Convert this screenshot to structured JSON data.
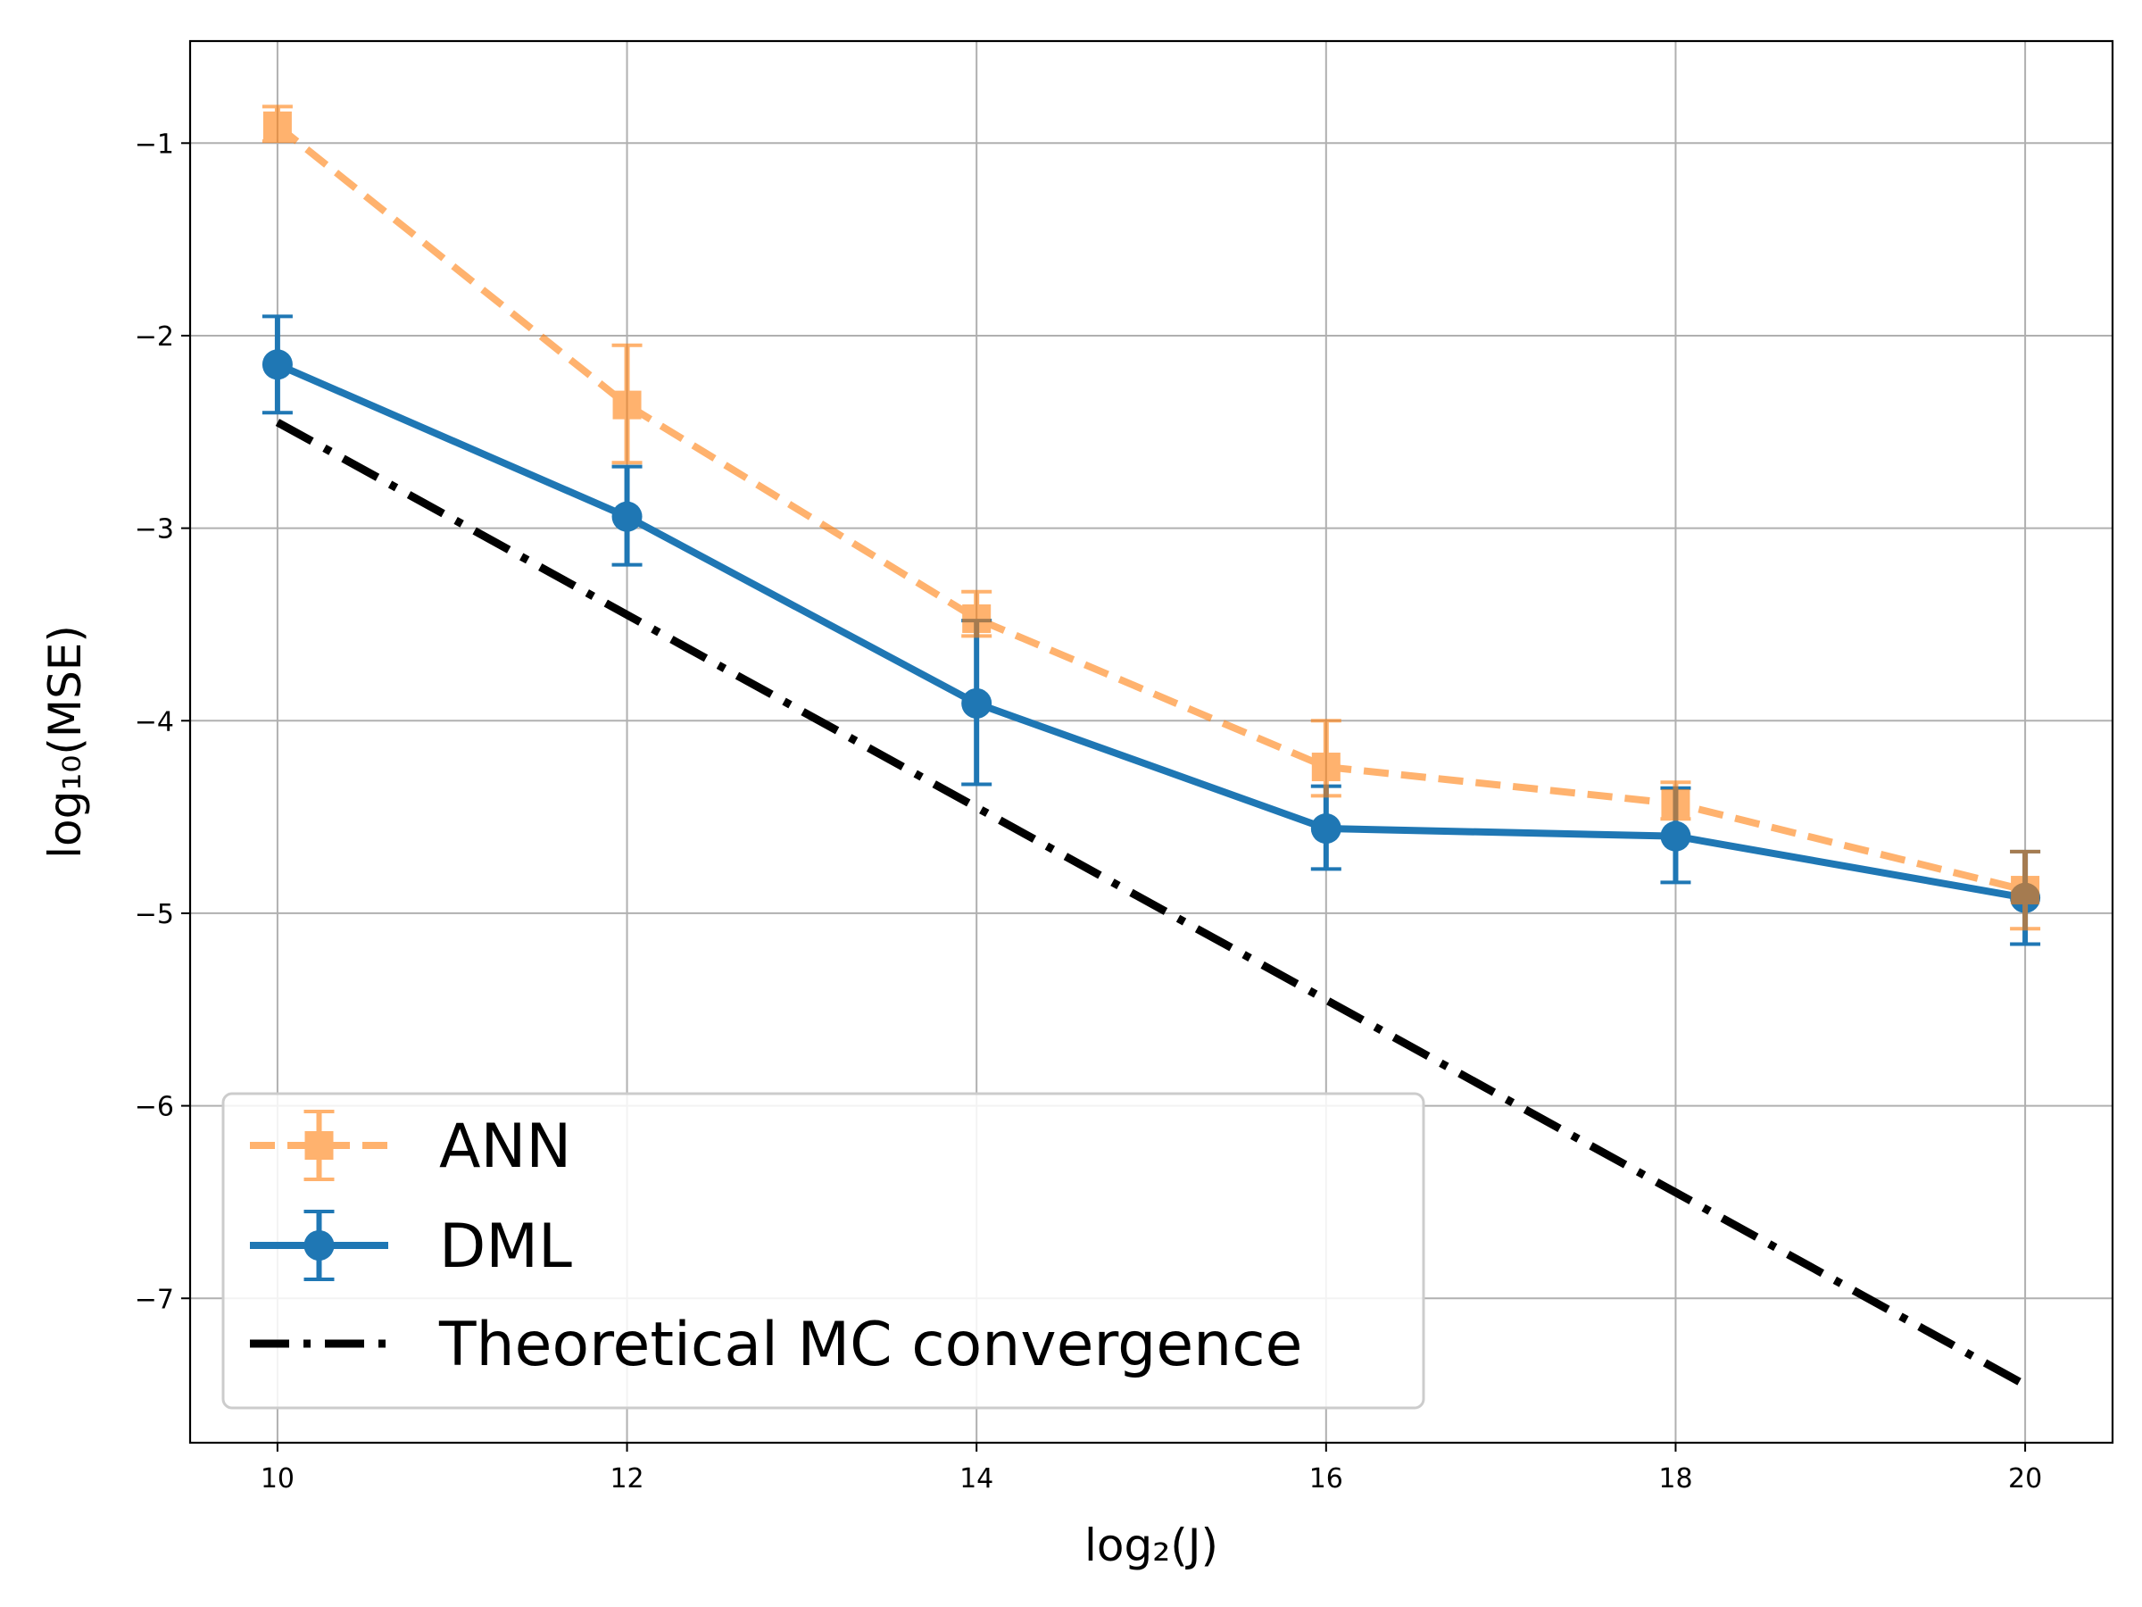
{
  "chart_data": {
    "type": "line",
    "title": "",
    "xlabel": "log₂(J)",
    "ylabel": "log₁₀(MSE)",
    "xlim": [
      9.5,
      20.5
    ],
    "ylim": [
      -7.75,
      -0.47
    ],
    "xticks": [
      10,
      12,
      14,
      16,
      18,
      20
    ],
    "xtick_labels": [
      "10",
      "12",
      "14",
      "16",
      "18",
      "20"
    ],
    "yticks": [
      -1,
      -2,
      -3,
      -4,
      -5,
      -6,
      -7
    ],
    "ytick_labels": [
      "−1",
      "−2",
      "−3",
      "−4",
      "−5",
      "−6",
      "−7"
    ],
    "grid": true,
    "legend_position": "bottom-left",
    "series": [
      {
        "name": "ANN",
        "color": "#ff7f0e",
        "style": "dashed",
        "marker": "square",
        "opacity": 0.6,
        "x": [
          10,
          12,
          14,
          16,
          18,
          20
        ],
        "y": [
          -0.91,
          -2.36,
          -3.47,
          -4.24,
          -4.43,
          -4.88
        ],
        "err_low": [
          -0.99,
          -2.66,
          -3.56,
          -4.39,
          -4.51,
          -5.08
        ],
        "err_high": [
          -0.81,
          -2.05,
          -3.33,
          -4.0,
          -4.32,
          -4.68
        ]
      },
      {
        "name": "DML",
        "color": "#1f77b4",
        "style": "solid",
        "marker": "circle",
        "opacity": 1,
        "x": [
          10,
          12,
          14,
          16,
          18,
          20
        ],
        "y": [
          -2.15,
          -2.94,
          -3.91,
          -4.56,
          -4.6,
          -4.92
        ],
        "err_low": [
          -2.4,
          -3.19,
          -4.33,
          -4.77,
          -4.84,
          -5.16
        ],
        "err_high": [
          -1.9,
          -2.68,
          -3.48,
          -4.34,
          -4.35,
          -4.68
        ]
      },
      {
        "name": "Theoretical MC convergence",
        "color": "#000000",
        "style": "dashdot",
        "marker": "none",
        "opacity": 1,
        "x": [
          10,
          20
        ],
        "y": [
          -2.45,
          -7.45
        ]
      }
    ]
  }
}
